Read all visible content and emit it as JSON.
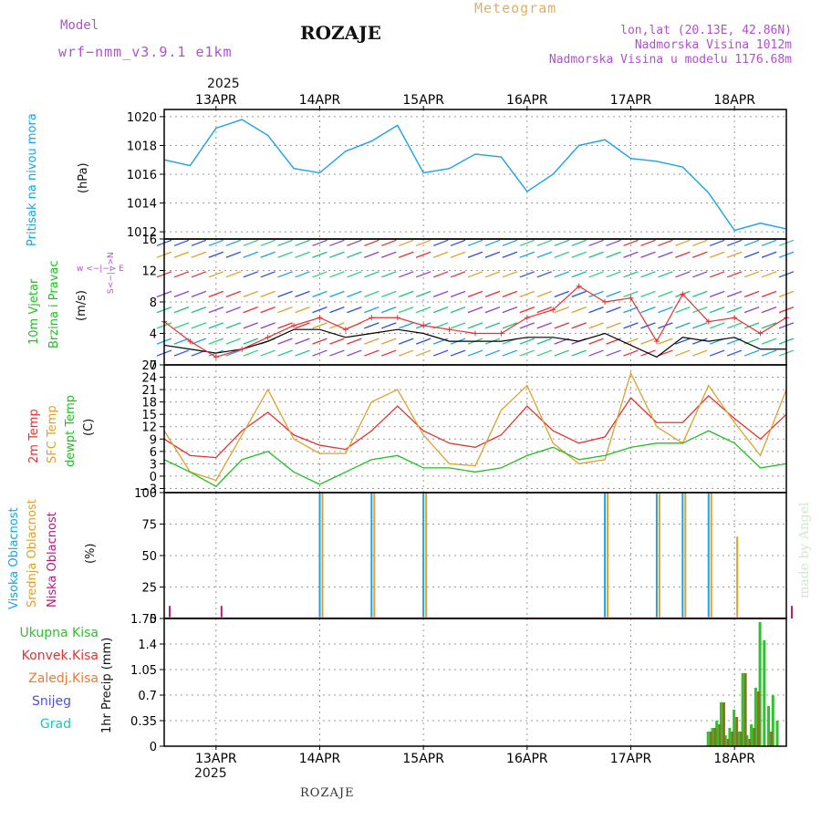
{
  "header": {
    "model_label": "Model",
    "model_name": "wrf−nmm_v3.9.1  e1km",
    "station": "ROZAJE",
    "product": "Meteogram",
    "lonlat": "lon,lat (20.13E, 42.86N)",
    "elevation": "Nadmorska Visina 1012m",
    "model_elevation": "Nadmorska Visina u modelu 1176.68m",
    "year_top": "2025",
    "year_bottom": "2025",
    "footer_station": "ROZAJE",
    "watermark": "made by Angel"
  },
  "colors": {
    "pressure": "#1aa3e6",
    "wind_avg": "#000000",
    "wind_gust": "#e83030",
    "temp2m": "#e83030",
    "sfc_temp": "#e0a030",
    "dewpt": "#20c020",
    "cloud_high": "#1aa3e6",
    "cloud_mid": "#e0a030",
    "cloud_low": "#b0207a",
    "precip_total": "#30c030",
    "precip_conv": "#e83030",
    "precip_strat": "#7a7a20",
    "snow": "#5050e0",
    "hail": "#20c0c0",
    "purple": "#b050d0"
  },
  "axis": {
    "days": [
      "13APR",
      "14APR",
      "15APR",
      "16APR",
      "17APR",
      "18APR"
    ]
  },
  "panels": {
    "pressure": {
      "label1": "Pritisak na nivou mora",
      "unit": "(hPa)",
      "ticks": [
        "1020",
        "1018",
        "1016",
        "1014",
        "1012"
      ]
    },
    "wind": {
      "label1": "10m Vjetar",
      "label2": "Brzina i Pravac",
      "unit": "(m/s)",
      "compass": "w  <−|−>  E",
      "compass_ns": "S<−|−>N",
      "ticks": [
        "16",
        "12",
        "8",
        "4",
        "0"
      ]
    },
    "temperature": {
      "label1": "2m Temp",
      "label2": "SFC Temp",
      "label3": "dewpt Temp",
      "unit": "(C)",
      "ticks": [
        "27",
        "24",
        "21",
        "18",
        "15",
        "12",
        "9",
        "6",
        "3",
        "0",
        "−3"
      ]
    },
    "clouds": {
      "label1": "Visoka Oblacnost",
      "label2": "Srednja Oblacnost",
      "label3": "Niska Oblacnost",
      "unit": "(%)",
      "ticks": [
        "100",
        "75",
        "50",
        "25",
        "0"
      ]
    },
    "precip": {
      "legend": [
        "Ukupna Kisa",
        "Konvek.Kisa",
        "Zaledj.Kisa",
        "Snijeg",
        "Grad"
      ],
      "unit": "1hr Precip (mm)",
      "ticks": [
        "1.75",
        "1.4",
        "1.05",
        "0.7",
        "0.35",
        "0"
      ]
    }
  },
  "chart_data": [
    {
      "type": "line",
      "title": "Pritisak na nivou mora",
      "ylabel": "(hPa)",
      "x_unit": "hours from 2025-04-12 12:00 UTC",
      "ylim": [
        1011.5,
        1020.5
      ],
      "series": [
        {
          "name": "Pritisak na nivou mora",
          "x": [
            0,
            6,
            12,
            18,
            24,
            30,
            36,
            42,
            48,
            54,
            60,
            66,
            72,
            78,
            84,
            90,
            96,
            102,
            108,
            114,
            120,
            126,
            132,
            138,
            144
          ],
          "values": [
            1017.0,
            1016.6,
            1019.2,
            1019.8,
            1018.7,
            1016.4,
            1016.1,
            1017.6,
            1018.3,
            1019.4,
            1016.1,
            1016.4,
            1017.4,
            1017.2,
            1014.8,
            1016.0,
            1018.0,
            1018.4,
            1017.1,
            1016.9,
            1016.5,
            1014.7,
            1012.1,
            1012.6,
            1012.2
          ]
        }
      ]
    },
    {
      "type": "line",
      "title": "10m Vjetar Brzina i Pravac",
      "ylabel": "(m/s)",
      "x_unit": "hours from 2025-04-12 12:00 UTC",
      "ylim": [
        0,
        16
      ],
      "series": [
        {
          "x": [
            0,
            6,
            12,
            18,
            24,
            30,
            36,
            42,
            48,
            54,
            60,
            66,
            72,
            78,
            84,
            90,
            96,
            102,
            108,
            114,
            120,
            126,
            132,
            138,
            144
          ],
          "values": [
            2.5,
            2.0,
            1.5,
            2.0,
            3.0,
            4.5,
            4.5,
            3.5,
            4.0,
            4.5,
            4.0,
            3.0,
            3.0,
            3.0,
            3.5,
            3.5,
            3.0,
            4.0,
            2.5,
            1.0,
            3.5,
            3.0,
            3.5,
            2.0,
            2.0
          ]
        },
        {
          "x": [
            0,
            6,
            12,
            18,
            24,
            30,
            36,
            42,
            48,
            54,
            60,
            66,
            72,
            78,
            84,
            90,
            96,
            102,
            108,
            114,
            120,
            126,
            132,
            138,
            144
          ],
          "values": [
            5.5,
            3.0,
            1.0,
            2.0,
            3.5,
            5.0,
            6.0,
            4.5,
            6.0,
            6.0,
            5.0,
            4.5,
            4.0,
            4.0,
            6.0,
            7.0,
            10.0,
            8.0,
            8.5,
            3.0,
            9.0,
            5.5,
            6.0,
            4.0,
            6.0
          ]
        }
      ]
    },
    {
      "type": "line",
      "title": "",
      "ylabel": "(C)",
      "x_unit": "hours from 2025-04-12 12:00 UTC",
      "ylim": [
        -4,
        27
      ],
      "series": [
        {
          "name": "2m Temp",
          "x": [
            0,
            6,
            12,
            18,
            24,
            30,
            36,
            42,
            48,
            54,
            60,
            66,
            72,
            78,
            84,
            90,
            96,
            102,
            108,
            114,
            120,
            126,
            132,
            138,
            144
          ],
          "values": [
            9,
            5,
            4.5,
            11,
            15.5,
            10,
            7.5,
            6.5,
            11,
            17,
            11,
            8,
            7,
            10,
            17,
            11,
            8,
            9.5,
            19,
            13,
            13,
            19.5,
            14,
            9,
            15
          ]
        },
        {
          "name": "SFC Temp",
          "x": [
            0,
            6,
            12,
            18,
            24,
            30,
            36,
            42,
            48,
            54,
            60,
            66,
            72,
            78,
            84,
            90,
            96,
            102,
            108,
            114,
            120,
            126,
            132,
            138,
            144
          ],
          "values": [
            11,
            1,
            -1,
            10,
            21,
            9,
            5.5,
            5.5,
            18,
            21,
            10,
            3,
            2.5,
            16,
            22,
            8,
            3,
            4,
            25,
            12,
            8,
            22,
            13,
            5,
            21
          ]
        },
        {
          "name": "dewpt Temp",
          "x": [
            0,
            6,
            12,
            18,
            24,
            30,
            36,
            42,
            48,
            54,
            60,
            66,
            72,
            78,
            84,
            90,
            96,
            102,
            108,
            114,
            120,
            126,
            132,
            138,
            144
          ],
          "values": [
            4,
            1,
            -2.5,
            4,
            6,
            1,
            -2,
            1,
            4,
            5,
            2,
            2,
            1,
            2,
            5,
            7,
            4,
            5,
            7,
            8,
            8,
            11,
            8,
            2,
            3
          ]
        }
      ]
    },
    {
      "type": "bar",
      "title": "",
      "ylabel": "(%)",
      "x_unit": "hours from 2025-04-12 12:00 UTC",
      "ylim": [
        0,
        100
      ],
      "series": [
        {
          "name": "Visoka Oblacnost",
          "x": [
            0,
            12,
            24,
            36,
            48,
            60,
            72,
            84,
            96,
            102,
            108,
            114,
            120,
            126,
            132,
            138,
            144
          ],
          "values": [
            0,
            0,
            0,
            100,
            100,
            100,
            0,
            0,
            0,
            100,
            0,
            100,
            100,
            100,
            0,
            0,
            0
          ]
        },
        {
          "name": "Srednja Oblacnost",
          "x": [
            0,
            12,
            24,
            36,
            48,
            60,
            72,
            84,
            96,
            102,
            108,
            114,
            120,
            126,
            132,
            138,
            144
          ],
          "values": [
            0,
            0,
            0,
            100,
            100,
            100,
            0,
            0,
            0,
            100,
            0,
            100,
            100,
            100,
            65,
            0,
            0
          ]
        },
        {
          "name": "Niska Oblacnost",
          "x": [
            0,
            12,
            24,
            36,
            48,
            60,
            72,
            84,
            96,
            102,
            108,
            114,
            120,
            126,
            132,
            138,
            144
          ],
          "values": [
            10,
            10,
            0,
            0,
            0,
            0,
            0,
            0,
            0,
            0,
            0,
            0,
            0,
            0,
            0,
            0,
            10
          ]
        }
      ]
    },
    {
      "type": "bar",
      "title": "",
      "ylabel": "1hr Precip (mm)",
      "x_unit": "hours from 2025-04-12 12:00 UTC",
      "ylim": [
        0,
        1.75
      ],
      "series": [
        {
          "name": "Ukupna Kisa",
          "x": [
            126,
            127,
            128,
            129,
            130,
            131,
            132,
            133,
            134,
            135,
            136,
            137,
            138,
            139,
            140,
            141,
            142
          ],
          "values": [
            0.2,
            0.25,
            0.35,
            0.6,
            0.15,
            0.25,
            0.5,
            0.2,
            1.0,
            0.15,
            0.3,
            0.8,
            1.7,
            1.45,
            0.55,
            0.7,
            0.35
          ]
        },
        {
          "name": "Zaledj.Kisa",
          "x": [
            126,
            127,
            128,
            129,
            130,
            131,
            132,
            133,
            134,
            135,
            136,
            137,
            138,
            139,
            140,
            141,
            142
          ],
          "values": [
            0.2,
            0.25,
            0.3,
            0.6,
            0.1,
            0.2,
            0.4,
            0.2,
            1.0,
            0.1,
            0.25,
            0.75,
            0.0,
            0.0,
            0.2,
            0.0,
            0.0
          ]
        }
      ]
    }
  ]
}
